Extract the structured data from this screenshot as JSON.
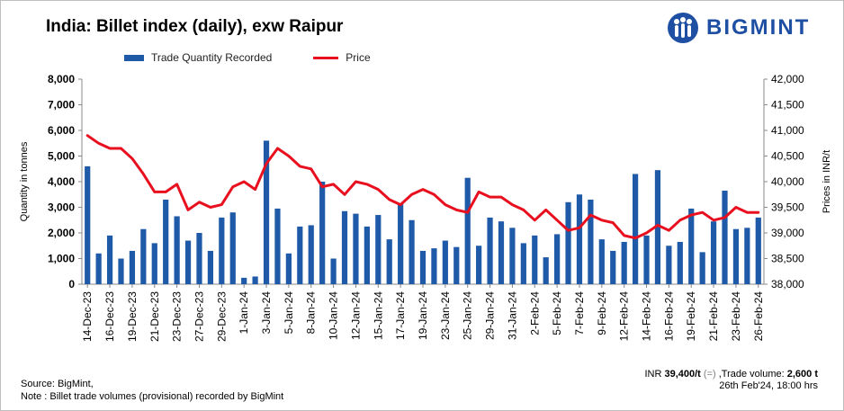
{
  "title": "India: Billet index (daily), exw Raipur",
  "logo": {
    "text": "BIGMINT",
    "icon": "bigmint-people-logo"
  },
  "colors": {
    "bar": "#1f5aa8",
    "line": "#e8101f",
    "brand": "#1e4fa3"
  },
  "legend": {
    "bar_label": "Trade Quantity Recorded",
    "line_label": "Price"
  },
  "footer": {
    "source": "Source: BigMint,",
    "note": "Note : Billet trade volumes (provisional) recorded by BigMint",
    "price_prefix": "INR ",
    "price_value": "39,400/t",
    "price_change": " (=)",
    "volume_prefix": " ,Trade volume: ",
    "volume_value": "2,600 t",
    "timestamp": "26th Feb'24, 18:00 hrs"
  },
  "chart_data": {
    "type": "bar",
    "y_left_label": "Quantity in tonnes",
    "y_right_label": "Prices in INR/t",
    "ylim_left": [
      0,
      8000
    ],
    "ylim_right": [
      38000,
      42000
    ],
    "yticks_left": [
      "0",
      "1,000",
      "2,000",
      "3,000",
      "4,000",
      "5,000",
      "6,000",
      "7,000",
      "8,000"
    ],
    "yticks_right": [
      "38,000",
      "38,500",
      "39,000",
      "39,500",
      "40,000",
      "40,500",
      "41,000",
      "41,500",
      "42,000"
    ],
    "xtick_labels": [
      "14-Dec-23",
      "16-Dec-23",
      "19-Dec-23",
      "21-Dec-23",
      "23-Dec-23",
      "27-Dec-23",
      "29-Dec-23",
      "1-Jan-24",
      "3-Jan-24",
      "5-Jan-24",
      "8-Jan-24",
      "10-Jan-24",
      "12-Jan-24",
      "15-Jan-24",
      "17-Jan-24",
      "19-Jan-24",
      "23-Jan-24",
      "25-Jan-24",
      "29-Jan-24",
      "31-Jan-24",
      "2-Feb-24",
      "5-Feb-24",
      "7-Feb-24",
      "9-Feb-24",
      "12-Feb-24",
      "14-Feb-24",
      "16-Feb-24",
      "19-Feb-24",
      "21-Feb-24",
      "23-Feb-24",
      "26-Feb-24"
    ],
    "grid": false,
    "legend_position": "top",
    "series": [
      {
        "name": "Trade Quantity Recorded",
        "type": "bar",
        "axis": "left",
        "values": [
          4600,
          1200,
          1900,
          1000,
          1300,
          2150,
          1600,
          3300,
          2650,
          1700,
          2000,
          1300,
          2600,
          2800,
          250,
          300,
          5600,
          2950,
          1200,
          2250,
          2300,
          4000,
          1000,
          2850,
          2750,
          2250,
          2700,
          1750,
          3150,
          2500,
          1300,
          1400,
          1700,
          1450,
          4150,
          1500,
          2600,
          2450,
          2200,
          1600,
          1900,
          1050,
          1950,
          3200,
          3500,
          3300,
          1750,
          1300,
          1650,
          4300,
          1900,
          4450,
          1500,
          1650,
          2950,
          1250,
          2450,
          3650,
          2150,
          2200,
          2600
        ]
      },
      {
        "name": "Price",
        "type": "line",
        "axis": "right",
        "values": [
          40900,
          40750,
          40650,
          40650,
          40450,
          40150,
          39800,
          39800,
          39950,
          39450,
          39600,
          39500,
          39550,
          39900,
          40000,
          39850,
          40350,
          40650,
          40500,
          40300,
          40250,
          39900,
          39950,
          39750,
          40000,
          39950,
          39850,
          39650,
          39550,
          39750,
          39850,
          39750,
          39550,
          39450,
          39400,
          39800,
          39700,
          39700,
          39550,
          39450,
          39250,
          39450,
          39250,
          39050,
          39100,
          39350,
          39250,
          39200,
          38950,
          38900,
          39000,
          39150,
          39050,
          39250,
          39350,
          39400,
          39250,
          39300,
          39500,
          39400,
          39400
        ]
      }
    ]
  }
}
